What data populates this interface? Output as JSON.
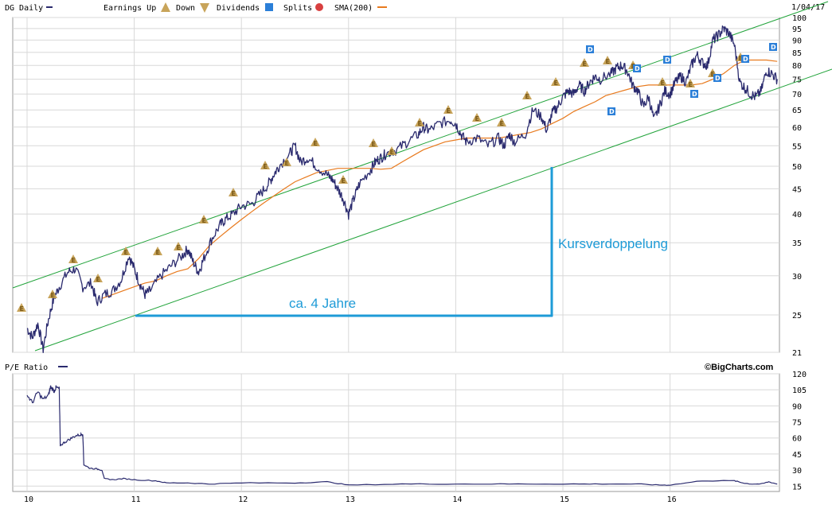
{
  "header": {
    "symbol_label": "DG Daily",
    "earnings_label": "Earnings Up",
    "down_label": "Down",
    "dividends_label": "Dividends",
    "splits_label": "Splits",
    "sma_label": "SMA(200)",
    "date_label": "1/04/17"
  },
  "lower_panel": {
    "title": "P/E Ratio",
    "copyright": "©BigCharts.com"
  },
  "annotations": {
    "horizontal_label": "ca. 4 Jahre",
    "vertical_label": "Kursverdoppelung"
  },
  "markers": {
    "earnings_glyph": "E",
    "dividend_glyph": "D",
    "split_glyph": "S"
  },
  "colors": {
    "price_line": "#2a2a6e",
    "sma": "#e87a1e",
    "channel": "#21a33a",
    "annotation": "#1e9bd7",
    "grid": "#d8d8d8",
    "earnings_marker": "#c8a45a",
    "dividend_marker": "#2b7fd8",
    "split_marker": "#d84040"
  },
  "chart_data": [
    {
      "type": "line",
      "scale": "log",
      "x_ticks": [
        "10",
        "11",
        "12",
        "13",
        "14",
        "15",
        "16"
      ],
      "y_ticks": [
        21,
        25,
        30,
        35,
        40,
        45,
        50,
        55,
        60,
        65,
        70,
        75,
        80,
        85,
        90,
        95,
        100
      ],
      "ylim": [
        21,
        100
      ],
      "series": [
        {
          "name": "DG Daily",
          "points": [
            [
              2010.0,
              23.5
            ],
            [
              2010.05,
              22.5
            ],
            [
              2010.1,
              24
            ],
            [
              2010.15,
              21.3
            ],
            [
              2010.2,
              24.5
            ],
            [
              2010.25,
              27
            ],
            [
              2010.3,
              28.5
            ],
            [
              2010.38,
              30.5
            ],
            [
              2010.45,
              31
            ],
            [
              2010.52,
              28.5
            ],
            [
              2010.6,
              29
            ],
            [
              2010.65,
              26.5
            ],
            [
              2010.72,
              27.5
            ],
            [
              2010.8,
              28
            ],
            [
              2010.88,
              29.5
            ],
            [
              2010.95,
              33
            ],
            [
              2011.0,
              31
            ],
            [
              2011.05,
              29
            ],
            [
              2011.1,
              27.5
            ],
            [
              2011.15,
              28
            ],
            [
              2011.25,
              30
            ],
            [
              2011.35,
              31.5
            ],
            [
              2011.45,
              33
            ],
            [
              2011.5,
              34
            ],
            [
              2011.55,
              32
            ],
            [
              2011.6,
              30.5
            ],
            [
              2011.65,
              32.5
            ],
            [
              2011.72,
              35.5
            ],
            [
              2011.8,
              38
            ],
            [
              2011.85,
              39
            ],
            [
              2011.92,
              40
            ],
            [
              2012.0,
              41.5
            ],
            [
              2012.1,
              42
            ],
            [
              2012.18,
              44
            ],
            [
              2012.25,
              46
            ],
            [
              2012.3,
              48
            ],
            [
              2012.35,
              50
            ],
            [
              2012.45,
              53
            ],
            [
              2012.5,
              55
            ],
            [
              2012.55,
              51
            ],
            [
              2012.62,
              52
            ],
            [
              2012.7,
              50
            ],
            [
              2012.8,
              48
            ],
            [
              2012.85,
              47
            ],
            [
              2012.9,
              45
            ],
            [
              2012.95,
              43
            ],
            [
              2013.0,
              40
            ],
            [
              2013.05,
              43
            ],
            [
              2013.1,
              46
            ],
            [
              2013.2,
              49
            ],
            [
              2013.25,
              51
            ],
            [
              2013.3,
              52
            ],
            [
              2013.35,
              53
            ],
            [
              2013.45,
              54
            ],
            [
              2013.55,
              56
            ],
            [
              2013.65,
              58
            ],
            [
              2013.7,
              60
            ],
            [
              2013.75,
              59
            ],
            [
              2013.85,
              61
            ],
            [
              2013.95,
              62
            ],
            [
              2014.0,
              61
            ],
            [
              2014.05,
              58
            ],
            [
              2014.1,
              56
            ],
            [
              2014.2,
              57
            ],
            [
              2014.3,
              55
            ],
            [
              2014.4,
              57
            ],
            [
              2014.45,
              55
            ],
            [
              2014.5,
              58
            ],
            [
              2014.55,
              56
            ],
            [
              2014.65,
              58
            ],
            [
              2014.72,
              65
            ],
            [
              2014.8,
              63
            ],
            [
              2014.85,
              59
            ],
            [
              2014.9,
              64
            ],
            [
              2014.95,
              66
            ],
            [
              2015.0,
              69
            ],
            [
              2015.05,
              71
            ],
            [
              2015.1,
              70
            ],
            [
              2015.15,
              73
            ],
            [
              2015.2,
              71
            ],
            [
              2015.25,
              74
            ],
            [
              2015.3,
              76
            ],
            [
              2015.35,
              75
            ],
            [
              2015.45,
              77
            ],
            [
              2015.5,
              79
            ],
            [
              2015.55,
              80
            ],
            [
              2015.6,
              78
            ],
            [
              2015.65,
              73
            ],
            [
              2015.7,
              71
            ],
            [
              2015.75,
              66
            ],
            [
              2015.8,
              69
            ],
            [
              2015.85,
              62
            ],
            [
              2015.9,
              66
            ],
            [
              2015.95,
              71
            ],
            [
              2016.0,
              70
            ],
            [
              2016.05,
              74
            ],
            [
              2016.1,
              76
            ],
            [
              2016.15,
              74
            ],
            [
              2016.2,
              80
            ],
            [
              2016.25,
              84
            ],
            [
              2016.3,
              81
            ],
            [
              2016.35,
              80
            ],
            [
              2016.4,
              90
            ],
            [
              2016.45,
              92
            ],
            [
              2016.5,
              95
            ],
            [
              2016.55,
              93
            ],
            [
              2016.6,
              88
            ],
            [
              2016.65,
              74
            ],
            [
              2016.7,
              72
            ],
            [
              2016.75,
              70
            ],
            [
              2016.8,
              69
            ],
            [
              2016.85,
              71
            ],
            [
              2016.9,
              78
            ],
            [
              2016.95,
              77
            ],
            [
              2017.0,
              75
            ]
          ]
        },
        {
          "name": "SMA(200)",
          "points": [
            [
              2010.7,
              27
            ],
            [
              2010.8,
              27.5
            ],
            [
              2010.9,
              28
            ],
            [
              2011.0,
              28.5
            ],
            [
              2011.1,
              29
            ],
            [
              2011.2,
              29.3
            ],
            [
              2011.3,
              30
            ],
            [
              2011.4,
              30.6
            ],
            [
              2011.5,
              31
            ],
            [
              2011.6,
              32.5
            ],
            [
              2011.7,
              34.5
            ],
            [
              2011.8,
              36
            ],
            [
              2011.9,
              37.5
            ],
            [
              2012.0,
              39
            ],
            [
              2012.1,
              40.5
            ],
            [
              2012.2,
              42
            ],
            [
              2012.3,
              43.5
            ],
            [
              2012.4,
              45
            ],
            [
              2012.5,
              46.5
            ],
            [
              2012.6,
              47.5
            ],
            [
              2012.7,
              48.5
            ],
            [
              2012.8,
              49
            ],
            [
              2012.9,
              49.5
            ],
            [
              2013.0,
              49.5
            ],
            [
              2013.1,
              49.5
            ],
            [
              2013.2,
              49.5
            ],
            [
              2013.3,
              49.3
            ],
            [
              2013.4,
              49.5
            ],
            [
              2013.5,
              51
            ],
            [
              2013.6,
              52.5
            ],
            [
              2013.7,
              54
            ],
            [
              2013.8,
              55
            ],
            [
              2013.9,
              56
            ],
            [
              2014.0,
              56.5
            ],
            [
              2014.1,
              57
            ],
            [
              2014.2,
              57
            ],
            [
              2014.3,
              57
            ],
            [
              2014.4,
              57
            ],
            [
              2014.5,
              57.5
            ],
            [
              2014.6,
              58
            ],
            [
              2014.7,
              58.5
            ],
            [
              2014.8,
              59.5
            ],
            [
              2014.9,
              61
            ],
            [
              2015.0,
              62.5
            ],
            [
              2015.1,
              64.5
            ],
            [
              2015.2,
              66
            ],
            [
              2015.3,
              67.5
            ],
            [
              2015.4,
              69.5
            ],
            [
              2015.5,
              70.5
            ],
            [
              2015.6,
              71.5
            ],
            [
              2015.7,
              72.5
            ],
            [
              2015.8,
              73
            ],
            [
              2015.9,
              73
            ],
            [
              2016.0,
              73
            ],
            [
              2016.1,
              73
            ],
            [
              2016.2,
              73
            ],
            [
              2016.3,
              73.5
            ],
            [
              2016.4,
              75
            ],
            [
              2016.5,
              77
            ],
            [
              2016.6,
              80
            ],
            [
              2016.7,
              82
            ],
            [
              2016.8,
              82
            ],
            [
              2016.9,
              82
            ],
            [
              2017.0,
              81.5
            ]
          ]
        }
      ]
    },
    {
      "type": "line",
      "title": "P/E Ratio",
      "x_ticks": [
        "10",
        "11",
        "12",
        "13",
        "14",
        "15",
        "16"
      ],
      "y_ticks": [
        15,
        30,
        45,
        60,
        75,
        90,
        105,
        120
      ],
      "ylim": [
        10,
        120
      ],
      "series": [
        {
          "name": "P/E Ratio",
          "points": [
            [
              2010.0,
              100
            ],
            [
              2010.05,
              93
            ],
            [
              2010.1,
              103
            ],
            [
              2010.15,
              96
            ],
            [
              2010.2,
              100
            ],
            [
              2010.22,
              108
            ],
            [
              2010.25,
              104
            ],
            [
              2010.27,
              107
            ],
            [
              2010.3,
              106
            ],
            [
              2010.31,
              53
            ],
            [
              2010.35,
              56
            ],
            [
              2010.4,
              59
            ],
            [
              2010.45,
              62
            ],
            [
              2010.5,
              63
            ],
            [
              2010.52,
              64
            ],
            [
              2010.53,
              35
            ],
            [
              2010.58,
              32
            ],
            [
              2010.65,
              31
            ],
            [
              2010.7,
              30
            ],
            [
              2010.72,
              22
            ],
            [
              2010.8,
              21
            ],
            [
              2010.9,
              22
            ],
            [
              2011.0,
              21
            ],
            [
              2011.2,
              20
            ],
            [
              2011.3,
              18
            ],
            [
              2011.5,
              18
            ],
            [
              2011.7,
              17
            ],
            [
              2012.0,
              18
            ],
            [
              2012.5,
              18
            ],
            [
              2012.8,
              19
            ],
            [
              2013.0,
              16
            ],
            [
              2013.5,
              17
            ],
            [
              2014.0,
              17
            ],
            [
              2014.5,
              17
            ],
            [
              2015.0,
              17
            ],
            [
              2015.3,
              17
            ],
            [
              2015.7,
              17
            ],
            [
              2015.9,
              16
            ],
            [
              2016.0,
              16
            ],
            [
              2016.3,
              20
            ],
            [
              2016.6,
              20
            ],
            [
              2016.68,
              18
            ],
            [
              2016.75,
              17
            ],
            [
              2016.85,
              17
            ],
            [
              2016.92,
              19
            ],
            [
              2017.0,
              17
            ]
          ]
        }
      ]
    }
  ]
}
